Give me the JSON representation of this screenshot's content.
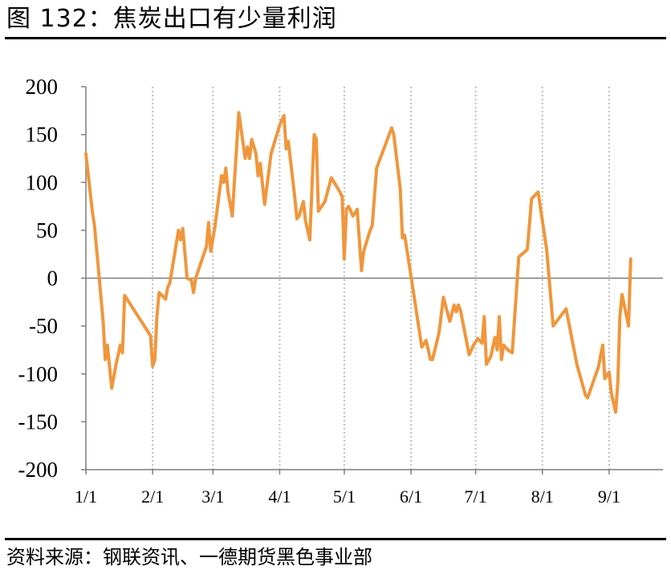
{
  "figure": {
    "title": "图 132：焦炭出口有少量利润",
    "source": "资料来源：钢联资讯、一德期货黑色事业部"
  },
  "colors": {
    "line": "#F0963C",
    "axis": "#7f7f7f",
    "gridline": "#bfbfbf"
  },
  "chart_data": {
    "type": "line",
    "title": "",
    "xlabel": "",
    "ylabel": "",
    "ylim": [
      -200,
      200
    ],
    "yticks": [
      -200,
      -150,
      -100,
      -50,
      0,
      50,
      100,
      150,
      200
    ],
    "grid": "vertical-dotted-at-month-starts",
    "legend": "none",
    "x_tick_labels": [
      "1/1",
      "2/1",
      "3/1",
      "4/1",
      "5/1",
      "6/1",
      "7/1",
      "8/1",
      "9/1"
    ],
    "x_tick_days": [
      0,
      31,
      59,
      90,
      120,
      151,
      181,
      212,
      243
    ],
    "x_max_day": 268,
    "series": [
      {
        "name": "",
        "points": [
          [
            0,
            130
          ],
          [
            3,
            70
          ],
          [
            4,
            55
          ],
          [
            6,
            5
          ],
          [
            8,
            -45
          ],
          [
            9,
            -85
          ],
          [
            10,
            -70
          ],
          [
            12,
            -115
          ],
          [
            14,
            -90
          ],
          [
            16,
            -70
          ],
          [
            17,
            -78
          ],
          [
            18,
            -18
          ],
          [
            30,
            -60
          ],
          [
            31,
            -92
          ],
          [
            32,
            -85
          ],
          [
            33,
            -40
          ],
          [
            34,
            -15
          ],
          [
            37,
            -22
          ],
          [
            38,
            -10
          ],
          [
            39,
            -5
          ],
          [
            43,
            50
          ],
          [
            44,
            40
          ],
          [
            45,
            52
          ],
          [
            47,
            0
          ],
          [
            49,
            -2
          ],
          [
            50,
            -15
          ],
          [
            51,
            0
          ],
          [
            56,
            33
          ],
          [
            57,
            58
          ],
          [
            58,
            28
          ],
          [
            60,
            55
          ],
          [
            63,
            107
          ],
          [
            64,
            100
          ],
          [
            65,
            115
          ],
          [
            66,
            90
          ],
          [
            68,
            65
          ],
          [
            71,
            173
          ],
          [
            74,
            125
          ],
          [
            75,
            137
          ],
          [
            76,
            125
          ],
          [
            77,
            145
          ],
          [
            79,
            130
          ],
          [
            80,
            107
          ],
          [
            81,
            120
          ],
          [
            83,
            77
          ],
          [
            86,
            130
          ],
          [
            90,
            160
          ],
          [
            92,
            170
          ],
          [
            93,
            135
          ],
          [
            94,
            143
          ],
          [
            97,
            85
          ],
          [
            98,
            62
          ],
          [
            99,
            65
          ],
          [
            101,
            80
          ],
          [
            102,
            60
          ],
          [
            104,
            40
          ],
          [
            106,
            150
          ],
          [
            107,
            145
          ],
          [
            108,
            70
          ],
          [
            111,
            80
          ],
          [
            114,
            105
          ],
          [
            118,
            90
          ],
          [
            119,
            85
          ],
          [
            120,
            20
          ],
          [
            121,
            72
          ],
          [
            122,
            75
          ],
          [
            124,
            65
          ],
          [
            125,
            68
          ],
          [
            126,
            72
          ],
          [
            128,
            8
          ],
          [
            129,
            28
          ],
          [
            132,
            50
          ],
          [
            133,
            55
          ],
          [
            135,
            115
          ],
          [
            142,
            157
          ],
          [
            143,
            150
          ],
          [
            146,
            93
          ],
          [
            147,
            42
          ],
          [
            148,
            45
          ],
          [
            151,
            2
          ],
          [
            156,
            -72
          ],
          [
            158,
            -65
          ],
          [
            160,
            -85
          ],
          [
            161,
            -85
          ],
          [
            164,
            -57
          ],
          [
            166,
            -20
          ],
          [
            169,
            -45
          ],
          [
            171,
            -28
          ],
          [
            172,
            -35
          ],
          [
            173,
            -28
          ],
          [
            174,
            -34
          ],
          [
            178,
            -80
          ],
          [
            180,
            -70
          ],
          [
            182,
            -63
          ],
          [
            184,
            -68
          ],
          [
            185,
            -40
          ],
          [
            186,
            -90
          ],
          [
            188,
            -82
          ],
          [
            190,
            -62
          ],
          [
            191,
            -75
          ],
          [
            192,
            -40
          ],
          [
            193,
            -85
          ],
          [
            194,
            -70
          ],
          [
            196,
            -75
          ],
          [
            198,
            -78
          ],
          [
            201,
            22
          ],
          [
            205,
            30
          ],
          [
            207,
            83
          ],
          [
            210,
            90
          ],
          [
            214,
            30
          ],
          [
            217,
            -50
          ],
          [
            223,
            -32
          ],
          [
            228,
            -90
          ],
          [
            232,
            -122
          ],
          [
            233,
            -125
          ],
          [
            238,
            -93
          ],
          [
            240,
            -70
          ],
          [
            241,
            -105
          ],
          [
            243,
            -98
          ],
          [
            244,
            -120
          ],
          [
            246,
            -140
          ],
          [
            247,
            -110
          ],
          [
            248,
            -40
          ],
          [
            249,
            -17
          ],
          [
            252,
            -50
          ],
          [
            253,
            20
          ]
        ]
      }
    ]
  }
}
